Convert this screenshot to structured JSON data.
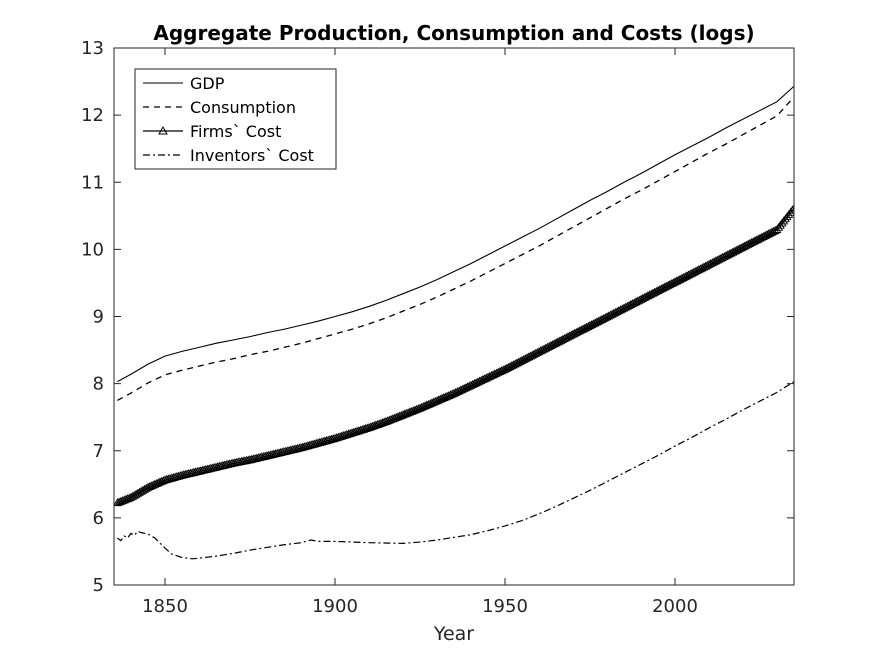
{
  "chart_data": {
    "type": "line",
    "title": "Aggregate Production, Consumption and Costs (logs)",
    "xlabel": "Year",
    "ylabel": "",
    "xlim": [
      1835,
      2035
    ],
    "ylim": [
      5,
      13
    ],
    "xticks": [
      1850,
      1900,
      1950,
      2000
    ],
    "yticks": [
      5,
      6,
      7,
      8,
      9,
      10,
      11,
      12,
      13
    ],
    "grid": false,
    "legend_position": "top-left",
    "series": [
      {
        "name": "GDP",
        "style": "solid",
        "points": [
          [
            1836,
            8.03
          ],
          [
            1840,
            8.14
          ],
          [
            1845,
            8.29
          ],
          [
            1850,
            8.41
          ],
          [
            1855,
            8.48
          ],
          [
            1860,
            8.54
          ],
          [
            1865,
            8.6
          ],
          [
            1870,
            8.65
          ],
          [
            1875,
            8.7
          ],
          [
            1880,
            8.76
          ],
          [
            1885,
            8.81
          ],
          [
            1890,
            8.87
          ],
          [
            1895,
            8.93
          ],
          [
            1900,
            9.0
          ],
          [
            1905,
            9.07
          ],
          [
            1910,
            9.15
          ],
          [
            1915,
            9.24
          ],
          [
            1920,
            9.34
          ],
          [
            1925,
            9.44
          ],
          [
            1930,
            9.55
          ],
          [
            1935,
            9.67
          ],
          [
            1940,
            9.79
          ],
          [
            1945,
            9.92
          ],
          [
            1950,
            10.05
          ],
          [
            1955,
            10.18
          ],
          [
            1960,
            10.31
          ],
          [
            1965,
            10.45
          ],
          [
            1970,
            10.59
          ],
          [
            1975,
            10.73
          ],
          [
            1980,
            10.86
          ],
          [
            1985,
            11.0
          ],
          [
            1990,
            11.13
          ],
          [
            1995,
            11.27
          ],
          [
            2000,
            11.41
          ],
          [
            2005,
            11.54
          ],
          [
            2010,
            11.67
          ],
          [
            2015,
            11.81
          ],
          [
            2020,
            11.94
          ],
          [
            2025,
            12.07
          ],
          [
            2030,
            12.2
          ],
          [
            2035,
            12.43
          ]
        ]
      },
      {
        "name": "Consumption",
        "style": "dashed",
        "points": [
          [
            1836,
            7.75
          ],
          [
            1840,
            7.86
          ],
          [
            1845,
            8.01
          ],
          [
            1850,
            8.13
          ],
          [
            1855,
            8.2
          ],
          [
            1860,
            8.26
          ],
          [
            1865,
            8.32
          ],
          [
            1870,
            8.37
          ],
          [
            1875,
            8.43
          ],
          [
            1880,
            8.48
          ],
          [
            1885,
            8.54
          ],
          [
            1890,
            8.6
          ],
          [
            1895,
            8.67
          ],
          [
            1900,
            8.74
          ],
          [
            1905,
            8.81
          ],
          [
            1910,
            8.89
          ],
          [
            1915,
            8.98
          ],
          [
            1920,
            9.08
          ],
          [
            1925,
            9.18
          ],
          [
            1930,
            9.29
          ],
          [
            1935,
            9.41
          ],
          [
            1940,
            9.53
          ],
          [
            1945,
            9.66
          ],
          [
            1950,
            9.79
          ],
          [
            1955,
            9.92
          ],
          [
            1960,
            10.05
          ],
          [
            1965,
            10.19
          ],
          [
            1970,
            10.33
          ],
          [
            1975,
            10.47
          ],
          [
            1980,
            10.61
          ],
          [
            1985,
            10.75
          ],
          [
            1990,
            10.88
          ],
          [
            1995,
            11.02
          ],
          [
            2000,
            11.16
          ],
          [
            2005,
            11.3
          ],
          [
            2010,
            11.44
          ],
          [
            2015,
            11.57
          ],
          [
            2020,
            11.71
          ],
          [
            2025,
            11.85
          ],
          [
            2030,
            11.99
          ],
          [
            2035,
            12.27
          ]
        ]
      },
      {
        "name": "Firms` Cost",
        "style": "solid-triangle-markers",
        "points": [
          [
            1836,
            6.22
          ],
          [
            1840,
            6.3
          ],
          [
            1845,
            6.45
          ],
          [
            1850,
            6.56
          ],
          [
            1855,
            6.63
          ],
          [
            1860,
            6.69
          ],
          [
            1865,
            6.75
          ],
          [
            1870,
            6.81
          ],
          [
            1875,
            6.86
          ],
          [
            1880,
            6.92
          ],
          [
            1885,
            6.98
          ],
          [
            1890,
            7.04
          ],
          [
            1895,
            7.11
          ],
          [
            1900,
            7.18
          ],
          [
            1905,
            7.26
          ],
          [
            1910,
            7.34
          ],
          [
            1915,
            7.43
          ],
          [
            1920,
            7.53
          ],
          [
            1925,
            7.63
          ],
          [
            1930,
            7.74
          ],
          [
            1935,
            7.85
          ],
          [
            1940,
            7.97
          ],
          [
            1945,
            8.09
          ],
          [
            1950,
            8.21
          ],
          [
            1955,
            8.34
          ],
          [
            1960,
            8.47
          ],
          [
            1965,
            8.6
          ],
          [
            1970,
            8.73
          ],
          [
            1975,
            8.86
          ],
          [
            1980,
            8.99
          ],
          [
            1985,
            9.12
          ],
          [
            1990,
            9.25
          ],
          [
            1995,
            9.38
          ],
          [
            2000,
            9.51
          ],
          [
            2005,
            9.64
          ],
          [
            2010,
            9.77
          ],
          [
            2015,
            9.9
          ],
          [
            2020,
            10.03
          ],
          [
            2025,
            10.16
          ],
          [
            2030,
            10.29
          ],
          [
            2035,
            10.61
          ]
        ]
      },
      {
        "name": "Inventors` Cost",
        "style": "dashdot",
        "points": [
          [
            1836,
            5.7
          ],
          [
            1837,
            5.66
          ],
          [
            1838,
            5.73
          ],
          [
            1839,
            5.7
          ],
          [
            1840,
            5.77
          ],
          [
            1841,
            5.74
          ],
          [
            1842,
            5.8
          ],
          [
            1843,
            5.78
          ],
          [
            1845,
            5.76
          ],
          [
            1847,
            5.7
          ],
          [
            1850,
            5.55
          ],
          [
            1852,
            5.46
          ],
          [
            1855,
            5.41
          ],
          [
            1858,
            5.39
          ],
          [
            1860,
            5.4
          ],
          [
            1865,
            5.43
          ],
          [
            1870,
            5.47
          ],
          [
            1875,
            5.52
          ],
          [
            1880,
            5.56
          ],
          [
            1885,
            5.6
          ],
          [
            1890,
            5.63
          ],
          [
            1893,
            5.67
          ],
          [
            1895,
            5.65
          ],
          [
            1900,
            5.65
          ],
          [
            1910,
            5.63
          ],
          [
            1920,
            5.62
          ],
          [
            1925,
            5.64
          ],
          [
            1930,
            5.67
          ],
          [
            1935,
            5.71
          ],
          [
            1940,
            5.75
          ],
          [
            1945,
            5.81
          ],
          [
            1950,
            5.88
          ],
          [
            1955,
            5.96
          ],
          [
            1960,
            6.06
          ],
          [
            1965,
            6.17
          ],
          [
            1970,
            6.29
          ],
          [
            1975,
            6.41
          ],
          [
            1980,
            6.54
          ],
          [
            1985,
            6.67
          ],
          [
            1990,
            6.8
          ],
          [
            1995,
            6.93
          ],
          [
            2000,
            7.07
          ],
          [
            2005,
            7.2
          ],
          [
            2010,
            7.34
          ],
          [
            2015,
            7.47
          ],
          [
            2020,
            7.61
          ],
          [
            2025,
            7.74
          ],
          [
            2030,
            7.87
          ],
          [
            2035,
            8.03
          ]
        ]
      }
    ]
  }
}
